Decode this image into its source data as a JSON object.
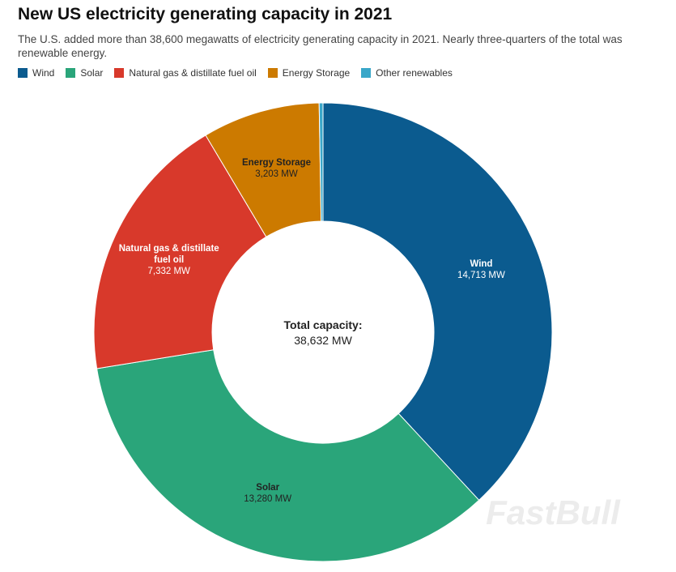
{
  "chart_data": {
    "type": "donut",
    "title": "New US electricity generating capacity in 2021",
    "subtitle": "The U.S. added more than 38,600 megawatts of electricity generating capacity in 2021. Nearly three-quarters of the total was renewable energy.",
    "categories": [
      "Wind",
      "Solar",
      "Natural gas & distillate fuel oil",
      "Energy Storage",
      "Other renewables"
    ],
    "values": [
      14713,
      13280,
      7332,
      3203,
      104
    ],
    "value_labels": [
      "14,713 MW",
      "13,280 MW",
      "7,332 MW",
      "3,203 MW",
      null
    ],
    "colors": [
      "#0b5b8f",
      "#2aa57a",
      "#d8392b",
      "#cc7a00",
      "#3aa7c9"
    ],
    "legend": "top-left",
    "center_title": "Total capacity:",
    "center_text": "38,632 MW",
    "watermark": "FastBull"
  }
}
